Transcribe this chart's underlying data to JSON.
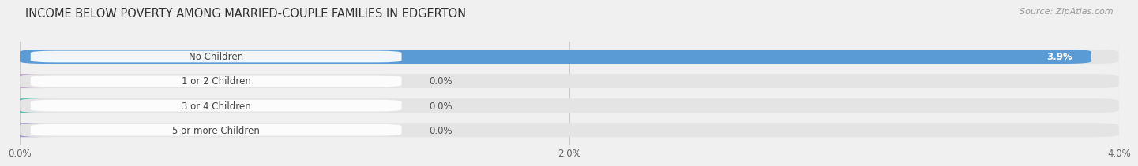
{
  "title": "INCOME BELOW POVERTY AMONG MARRIED-COUPLE FAMILIES IN EDGERTON",
  "source": "Source: ZipAtlas.com",
  "categories": [
    "No Children",
    "1 or 2 Children",
    "3 or 4 Children",
    "5 or more Children"
  ],
  "values": [
    3.9,
    0.0,
    0.0,
    0.0
  ],
  "value_labels": [
    "3.9%",
    "0.0%",
    "0.0%",
    "0.0%"
  ],
  "xlim": [
    0,
    4.0
  ],
  "xticks": [
    0.0,
    2.0,
    4.0
  ],
  "xticklabels": [
    "0.0%",
    "2.0%",
    "4.0%"
  ],
  "bar_colors": [
    "#5b9bd5",
    "#c0a8d0",
    "#5bbfb5",
    "#9999cc"
  ],
  "background_color": "#f0f0f0",
  "bar_bg_color": "#e4e4e4",
  "title_fontsize": 10.5,
  "source_fontsize": 8,
  "label_fontsize": 8.5,
  "value_fontsize": 8.5,
  "bar_height": 0.58,
  "fig_width": 14.06,
  "fig_height": 2.33
}
